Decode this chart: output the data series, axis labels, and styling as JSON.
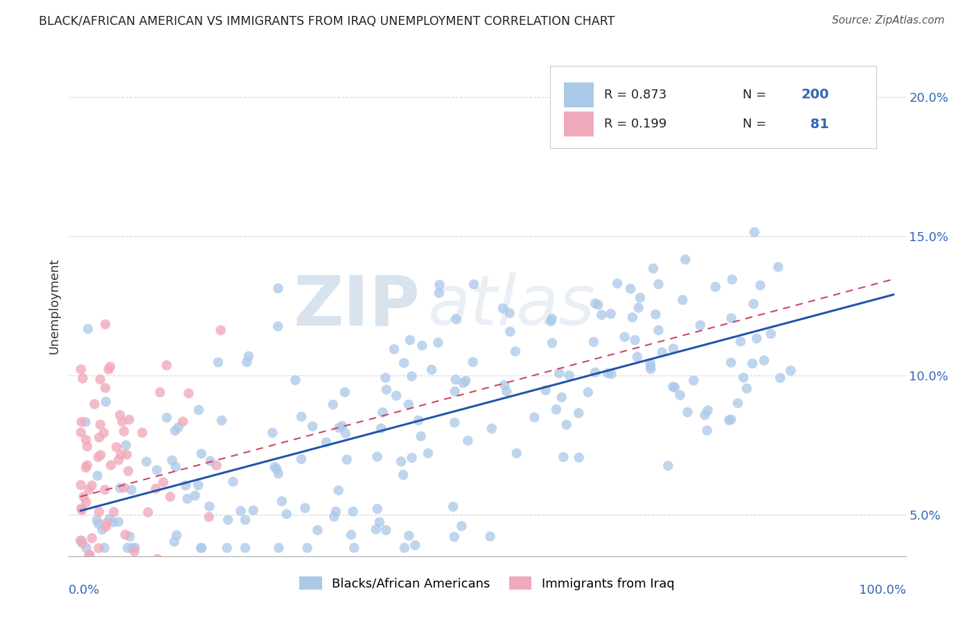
{
  "title": "BLACK/AFRICAN AMERICAN VS IMMIGRANTS FROM IRAQ UNEMPLOYMENT CORRELATION CHART",
  "source_text": "Source: ZipAtlas.com",
  "ylabel": "Unemployment",
  "blue_R": 0.873,
  "blue_N": 200,
  "pink_R": 0.199,
  "pink_N": 81,
  "blue_color": "#aac8e8",
  "pink_color": "#f0aabb",
  "blue_line_color": "#2255aa",
  "pink_line_color": "#cc4466",
  "watermark_zip": "ZIP",
  "watermark_atlas": "atlas",
  "ytick_vals": [
    0.05,
    0.1,
    0.15,
    0.2
  ],
  "ytick_labels": [
    "5.0%",
    "10.0%",
    "15.0%",
    "20.0%"
  ],
  "background_color": "#ffffff",
  "legend_label_blue": "Blacks/African Americans",
  "legend_label_pink": "Immigrants from Iraq",
  "xlim": [
    -0.015,
    1.015
  ],
  "ylim": [
    0.035,
    0.215
  ]
}
